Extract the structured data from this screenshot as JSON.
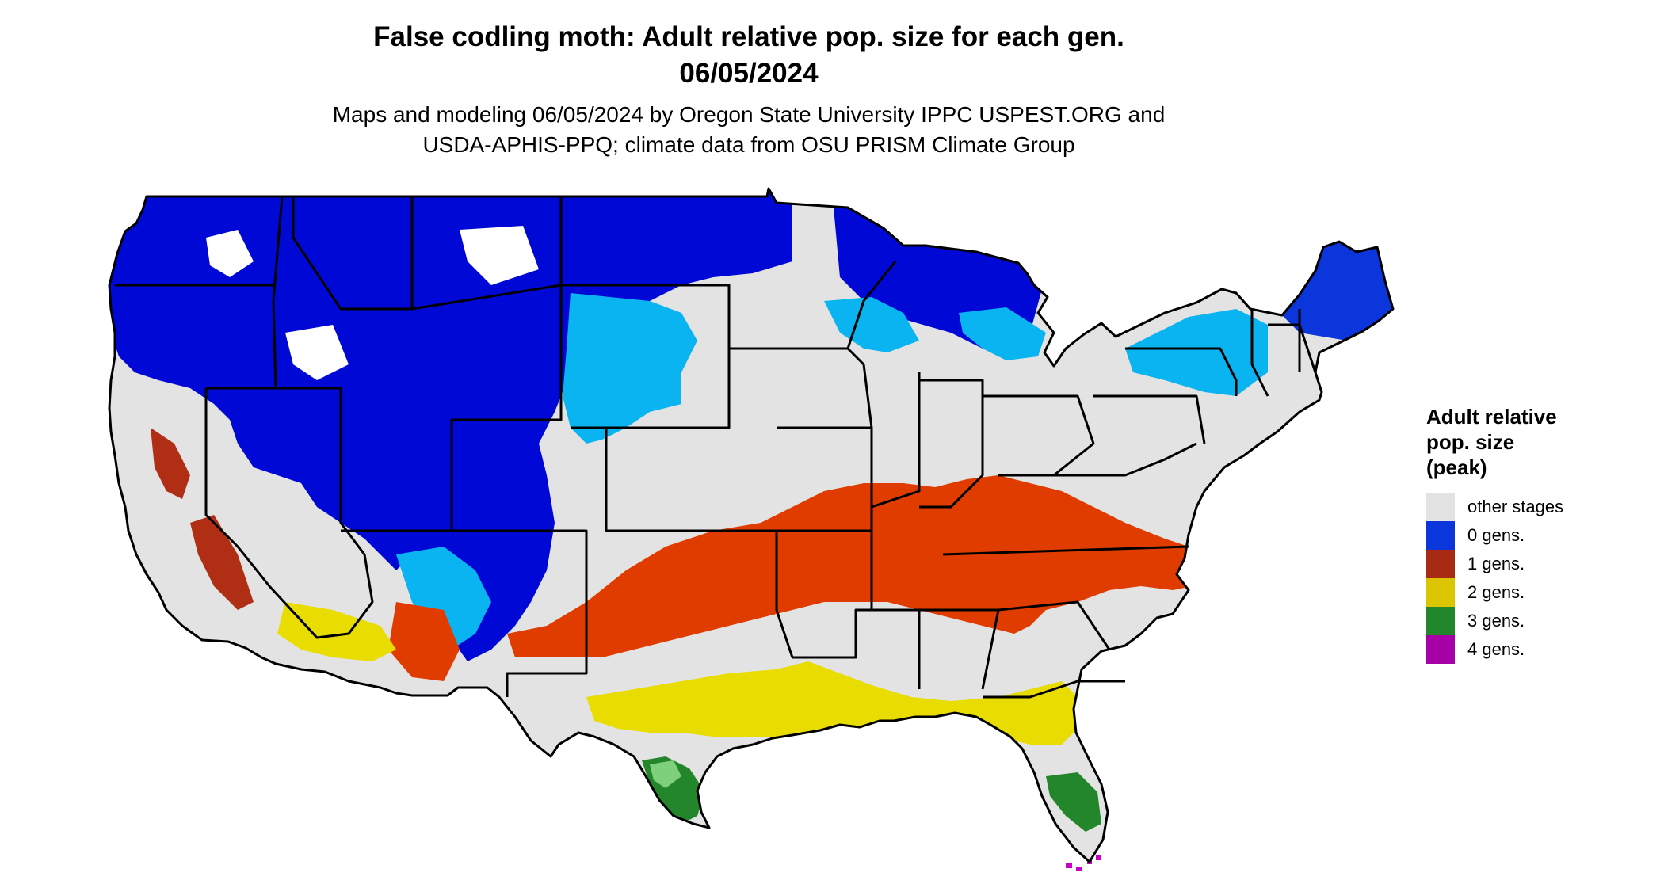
{
  "header": {
    "title_line1": "False codling moth: Adult relative pop. size for each gen.",
    "title_line2": "06/05/2024",
    "subtitle_line1": "Maps and modeling 06/05/2024 by Oregon State University IPPC USPEST.ORG and",
    "subtitle_line2": "USDA-APHIS-PPQ; climate data from OSU PRISM Climate Group"
  },
  "legend": {
    "title_line1": "Adult relative",
    "title_line2": "pop. size",
    "title_line3": "(peak)",
    "items": [
      {
        "label": "other stages",
        "color": "#e3e3e3"
      },
      {
        "label": "0 gens.",
        "color": "#0a36db"
      },
      {
        "label": "1 gens.",
        "color": "#a82a12"
      },
      {
        "label": "2 gens.",
        "color": "#dbc400"
      },
      {
        "label": "3 gens.",
        "color": "#23862a"
      },
      {
        "label": "4 gens.",
        "color": "#a600a6"
      }
    ]
  },
  "map_colors": {
    "background": "#e3e3e3",
    "deep_blue": "#0008d6",
    "mid_blue": "#0a36db",
    "light_blue": "#0ab4f0",
    "orange": "#e03c00",
    "dark_red": "#b02e14",
    "yellow": "#e8dc00",
    "green": "#23862a",
    "light_green": "#7fd07a",
    "magenta": "#c800c8",
    "border": "#000000"
  }
}
